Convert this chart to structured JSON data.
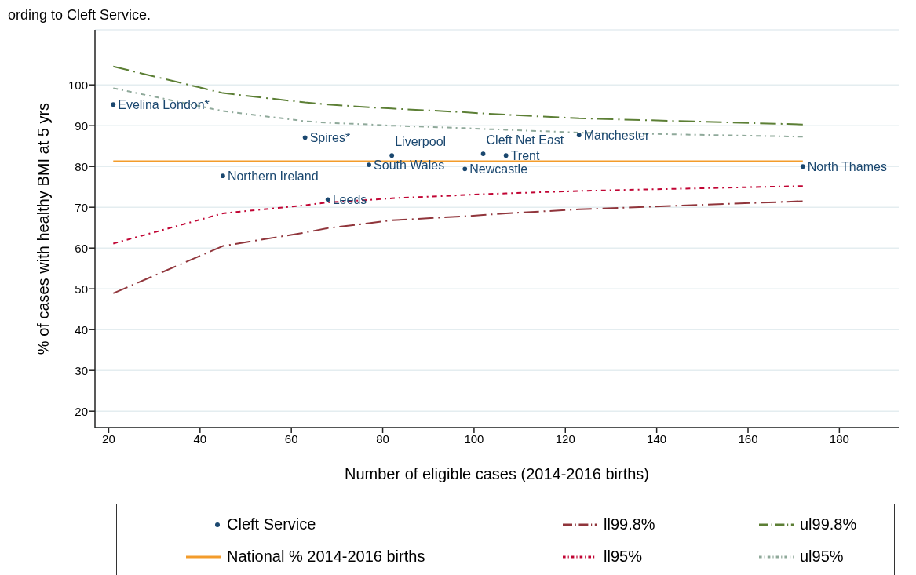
{
  "chart_data": {
    "type": "line",
    "annotations": [
      "ording to Cleft Service."
    ],
    "xlabel": "Number of eligible cases (2014-2016 births)",
    "ylabel": "% of cases with healthy BMI at 5 yrs",
    "xlim": [
      17,
      193
    ],
    "ylim": [
      16,
      113.5
    ],
    "xticks": [
      20,
      40,
      60,
      80,
      100,
      120,
      140,
      160,
      180
    ],
    "yticks": [
      20,
      30,
      40,
      50,
      60,
      70,
      80,
      90,
      100
    ],
    "grid": "y",
    "legend": "bottom",
    "series": [
      {
        "name": "Cleft Service",
        "type": "scatter",
        "color": "#1a476f",
        "marker": "circle",
        "x": [
          21,
          45,
          63,
          68,
          77,
          82,
          98,
          102,
          107,
          123,
          172
        ],
        "values": [
          95.2,
          77.7,
          87.1,
          71.9,
          80.4,
          82.7,
          79.4,
          83.1,
          82.7,
          87.7,
          80.0
        ],
        "value_labels": [
          "Evelina London*",
          "Northern Ireland",
          "Spires*",
          "Leeds",
          "South Wales",
          "Liverpool",
          "Newcastle",
          "Cleft Net East",
          "Trent",
          "Manchester",
          "North Thames"
        ]
      },
      {
        "name": "ll99.8%",
        "color": "#90353b",
        "line_style": "dashed",
        "x": [
          21,
          45,
          63,
          68,
          77,
          82,
          98,
          102,
          107,
          123,
          172
        ],
        "values": [
          48.9,
          60.5,
          63.8,
          64.9,
          66.1,
          66.8,
          67.8,
          68.1,
          68.5,
          69.5,
          71.5
        ]
      },
      {
        "name": "ul99.8%",
        "color": "#5c7f35",
        "line_style": "dashed",
        "x": [
          21,
          45,
          63,
          68,
          77,
          82,
          98,
          102,
          107,
          123,
          172
        ],
        "values": [
          104.5,
          98.0,
          95.7,
          95.2,
          94.5,
          94.2,
          93.3,
          93.0,
          92.7,
          91.8,
          90.3
        ]
      },
      {
        "name": "National % 2014-2016 births",
        "color": "#f39c2b",
        "line_style": "solid",
        "x": [
          21,
          172
        ],
        "values": [
          81.3,
          81.3
        ]
      },
      {
        "name": "ll95%",
        "color": "#c10534",
        "line_style": "dotted",
        "x": [
          21,
          45,
          63,
          68,
          77,
          82,
          98,
          102,
          107,
          123,
          172
        ],
        "values": [
          61.1,
          68.5,
          70.5,
          71.2,
          71.8,
          72.2,
          73.0,
          73.2,
          73.4,
          74.0,
          75.2
        ]
      },
      {
        "name": "ul95%",
        "color": "#8fa99a",
        "line_style": "dotted",
        "x": [
          21,
          45,
          63,
          68,
          77,
          82,
          98,
          102,
          107,
          123,
          172
        ],
        "values": [
          99.2,
          93.6,
          91.1,
          90.7,
          90.3,
          90.0,
          89.4,
          89.2,
          89.0,
          88.3,
          87.3
        ]
      }
    ]
  }
}
